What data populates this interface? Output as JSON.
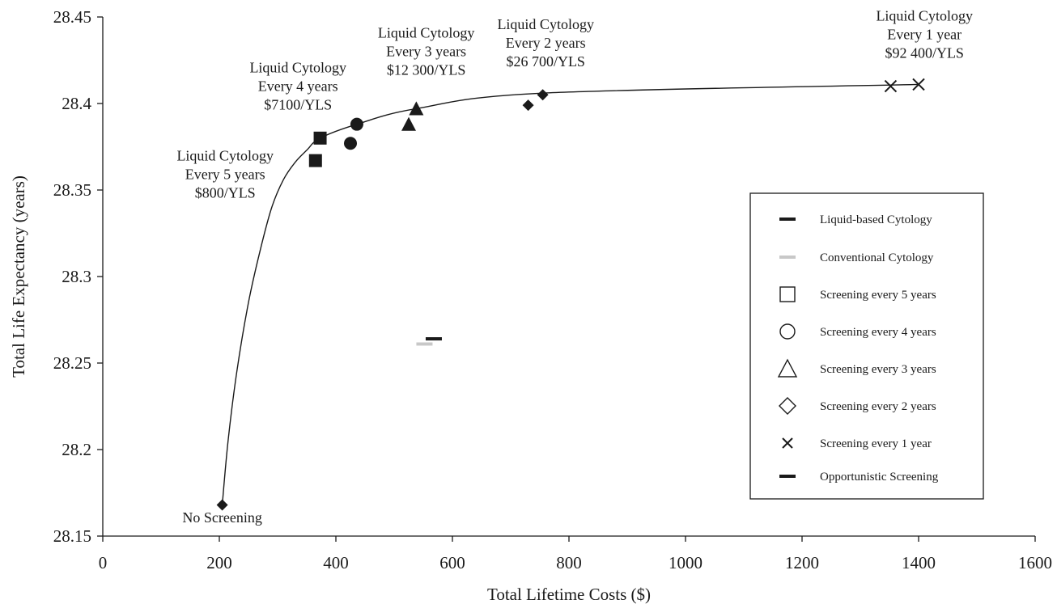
{
  "chart_data": {
    "type": "scatter",
    "title": "",
    "xlabel": "Total Lifetime Costs ($)",
    "ylabel": "Total Life Expectancy (years)",
    "xlim": [
      0,
      1600
    ],
    "ylim": [
      28.15,
      28.45
    ],
    "x_ticks": [
      "0",
      "200",
      "400",
      "600",
      "800",
      "1000",
      "1200",
      "1400",
      "1600"
    ],
    "y_ticks": [
      "28.15",
      "28.2",
      "28.25",
      "28.3",
      "28.35",
      "28.4",
      "28.45"
    ],
    "grid": false,
    "legend_position": "right",
    "legend": [
      {
        "label": "Liquid-based Cytology",
        "marker": "dash",
        "color": "#1a1a1a"
      },
      {
        "label": "Conventional Cytology",
        "marker": "dash",
        "color": "#c8c8c8"
      },
      {
        "label": "Screening every 5 years",
        "marker": "square-open"
      },
      {
        "label": "Screening every 4 years",
        "marker": "circle-open"
      },
      {
        "label": "Screening every 3 years",
        "marker": "triangle-open"
      },
      {
        "label": "Screening every 2 years",
        "marker": "diamond-open"
      },
      {
        "label": "Screening every 1 year",
        "marker": "x"
      },
      {
        "label": "Opportunistic Screening",
        "marker": "dash-short"
      }
    ],
    "points": [
      {
        "x": 205,
        "y": 28.168,
        "marker": "diamond",
        "group": "none"
      },
      {
        "x": 365,
        "y": 28.367,
        "marker": "square",
        "group": "conventional"
      },
      {
        "x": 373,
        "y": 28.38,
        "marker": "square",
        "group": "liquid"
      },
      {
        "x": 425,
        "y": 28.377,
        "marker": "circle",
        "group": "conventional"
      },
      {
        "x": 436,
        "y": 28.388,
        "marker": "circle",
        "group": "liquid"
      },
      {
        "x": 525,
        "y": 28.388,
        "marker": "triangle",
        "group": "conventional"
      },
      {
        "x": 538,
        "y": 28.397,
        "marker": "triangle",
        "group": "liquid"
      },
      {
        "x": 730,
        "y": 28.399,
        "marker": "diamond",
        "group": "conventional"
      },
      {
        "x": 755,
        "y": 28.405,
        "marker": "diamond",
        "group": "liquid"
      },
      {
        "x": 1352,
        "y": 28.41,
        "marker": "x",
        "group": "conventional"
      },
      {
        "x": 1400,
        "y": 28.411,
        "marker": "x",
        "group": "liquid"
      },
      {
        "x": 552,
        "y": 28.261,
        "marker": "dash",
        "group": "conventional-opportunistic"
      },
      {
        "x": 568,
        "y": 28.264,
        "marker": "dash",
        "group": "liquid-opportunistic"
      }
    ],
    "frontier_curve": [
      [
        205,
        28.168
      ],
      [
        215,
        28.205
      ],
      [
        230,
        28.245
      ],
      [
        250,
        28.285
      ],
      [
        270,
        28.315
      ],
      [
        290,
        28.34
      ],
      [
        310,
        28.356
      ],
      [
        330,
        28.366
      ],
      [
        350,
        28.373
      ],
      [
        373,
        28.38
      ],
      [
        436,
        28.388
      ],
      [
        538,
        28.397
      ],
      [
        755,
        28.406
      ],
      [
        1400,
        28.411
      ]
    ],
    "annotations": [
      {
        "lines": [
          "No Screening"
        ],
        "x": 205,
        "y": 28.158
      },
      {
        "lines": [
          "Liquid Cytology",
          "Every 5 years",
          "$800/YLS"
        ],
        "x": 210,
        "y": 28.367
      },
      {
        "lines": [
          "Liquid Cytology",
          "Every 4 years",
          "$7100/YLS"
        ],
        "x": 335,
        "y": 28.418
      },
      {
        "lines": [
          "Liquid Cytology",
          "Every 3 years",
          "$12 300/YLS"
        ],
        "x": 555,
        "y": 28.438
      },
      {
        "lines": [
          "Liquid Cytology",
          "Every 2 years",
          "$26 700/YLS"
        ],
        "x": 760,
        "y": 28.443
      },
      {
        "lines": [
          "Liquid Cytology",
          "Every 1 year",
          "$92 400/YLS"
        ],
        "x": 1410,
        "y": 28.448
      }
    ]
  }
}
